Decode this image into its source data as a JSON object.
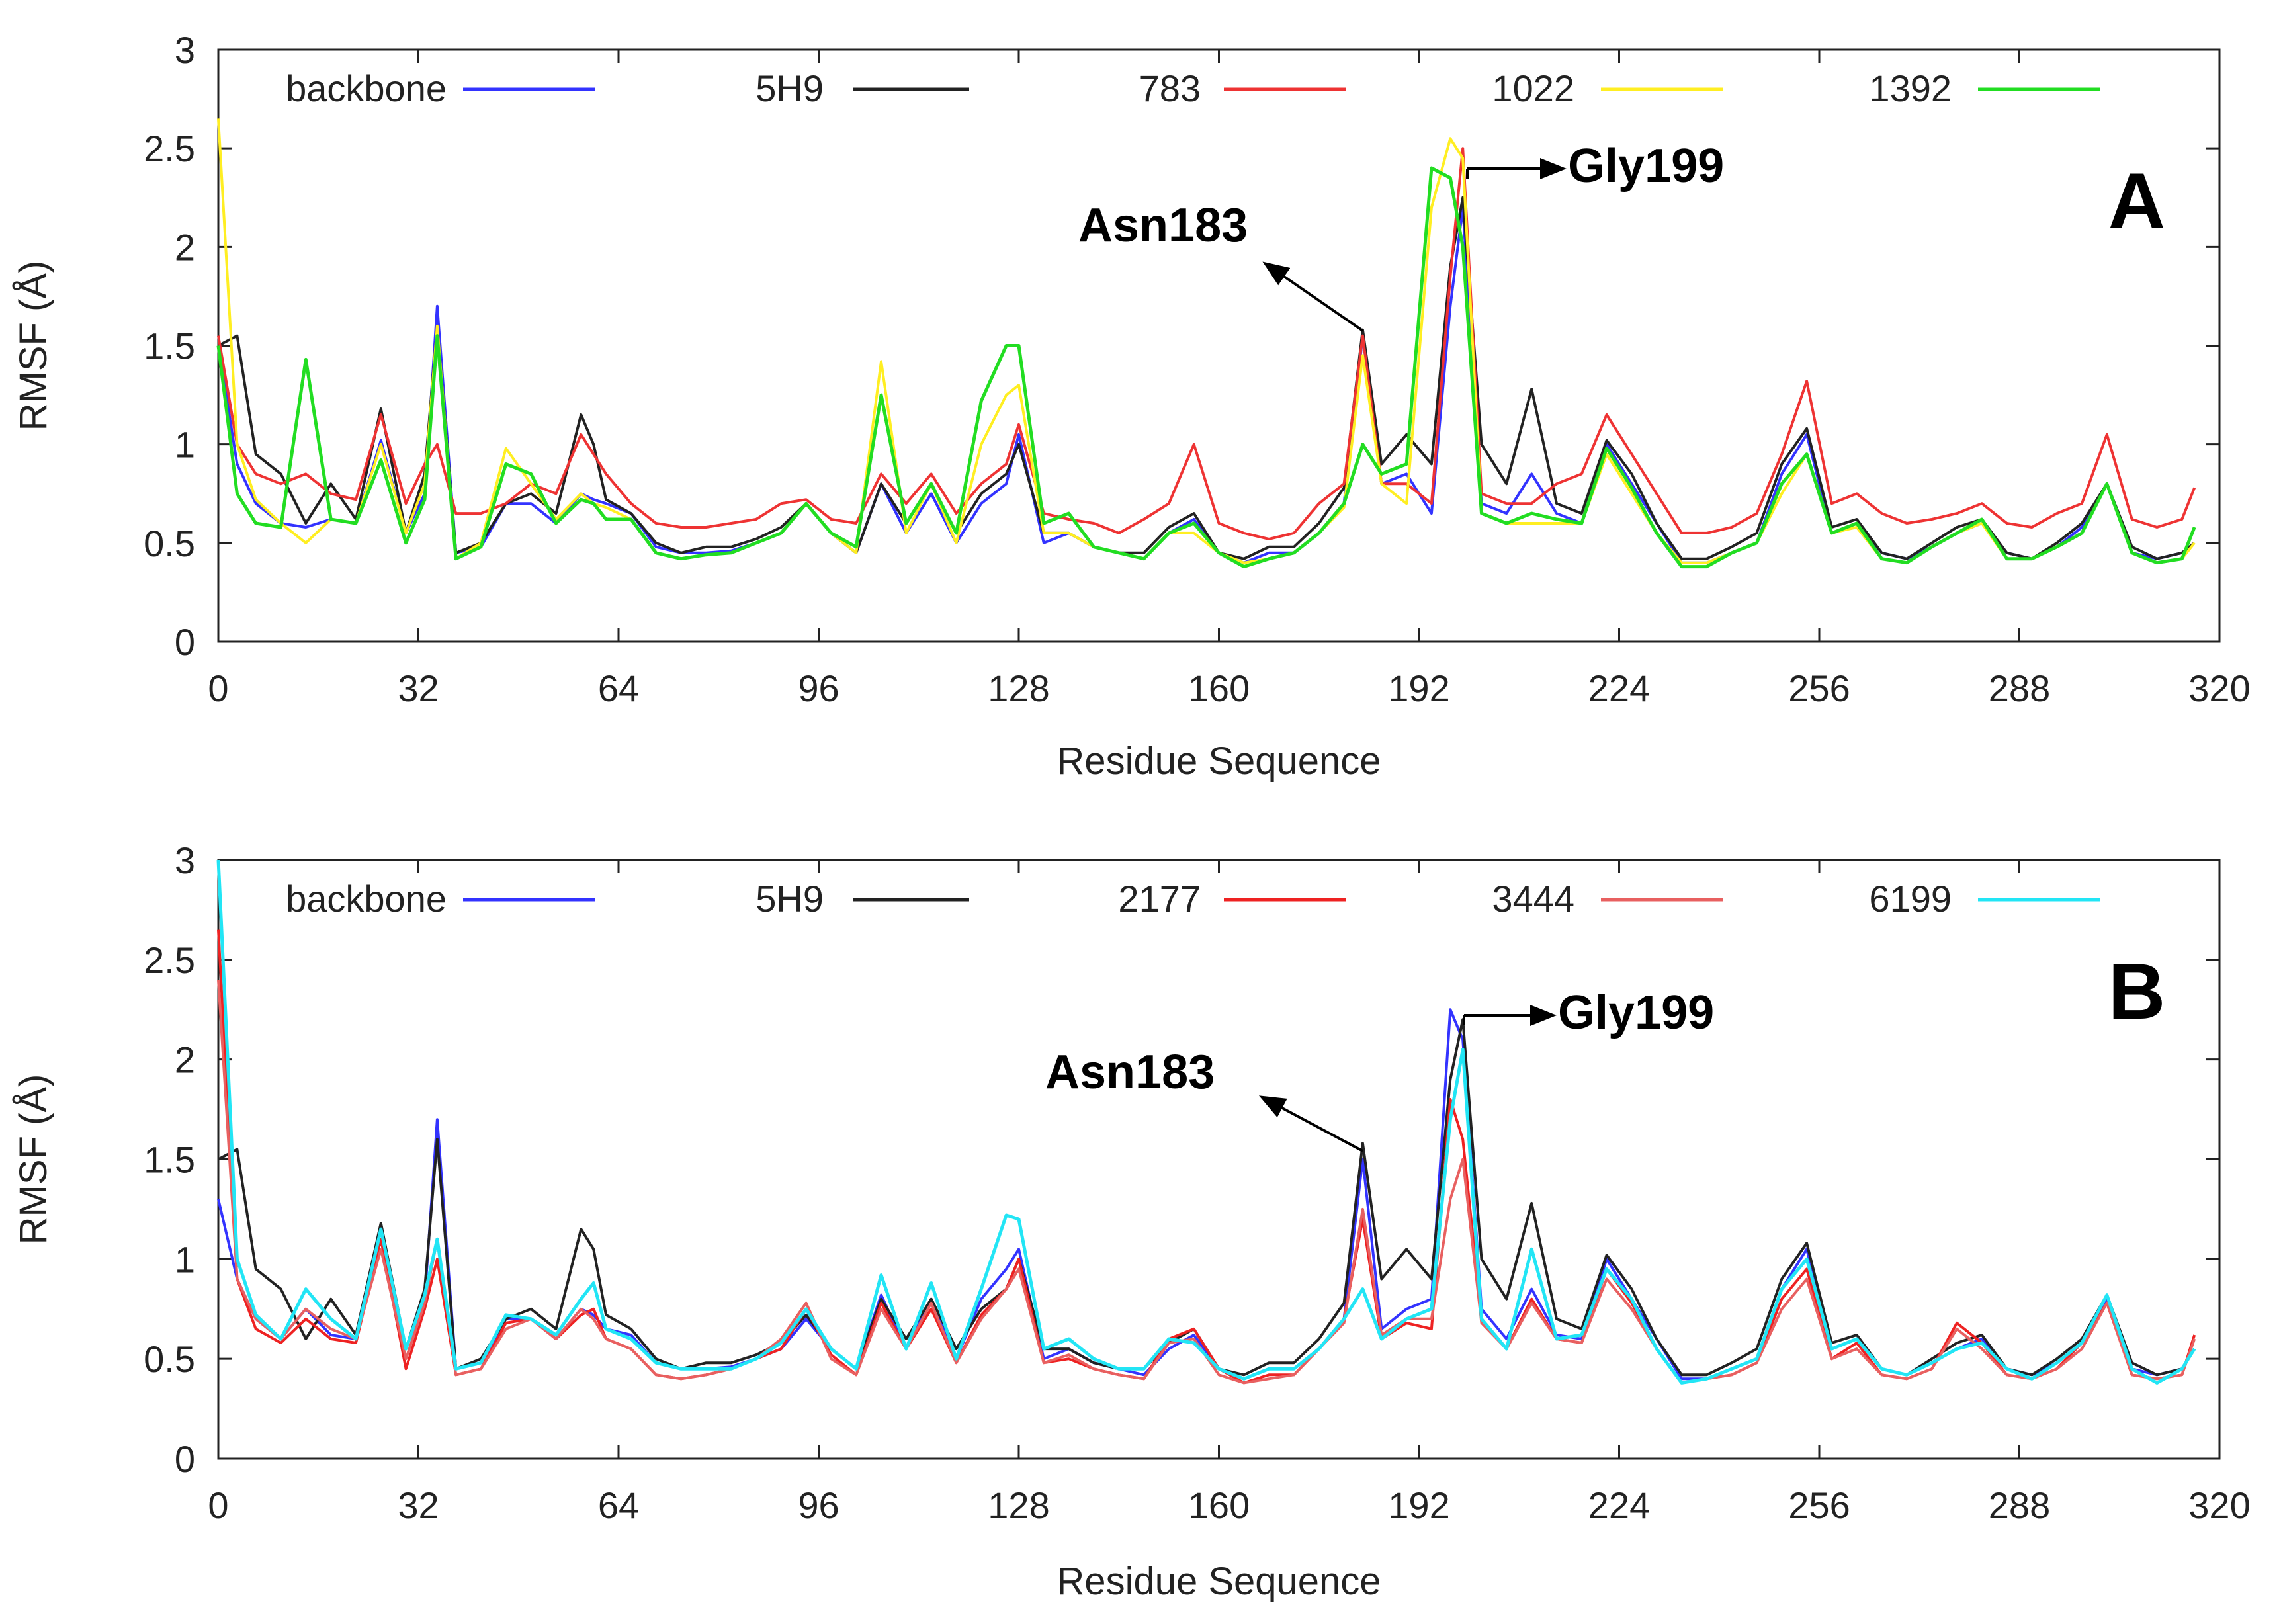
{
  "chart_data": [
    {
      "type": "line",
      "panel_label": "A",
      "xlabel": "Residue Sequence",
      "ylabel": "RMSF (Å)",
      "xlim": [
        0,
        320
      ],
      "ylim": [
        0,
        3
      ],
      "xticks": [
        "0",
        "32",
        "64",
        "96",
        "128",
        "160",
        "192",
        "224",
        "256",
        "288",
        "320"
      ],
      "yticks": [
        "0",
        "0.5",
        "1",
        "1.5",
        "2",
        "2.5",
        "3"
      ],
      "legend_position": "top",
      "annotations": [
        {
          "text": "Asn183",
          "residue": 183,
          "value": 1.58
        },
        {
          "text": "Gly199",
          "residue": 199,
          "value": 2.35
        }
      ],
      "x": [
        0,
        3,
        6,
        10,
        14,
        18,
        22,
        26,
        30,
        33,
        35,
        38,
        42,
        46,
        50,
        54,
        58,
        60,
        62,
        66,
        70,
        74,
        78,
        82,
        86,
        90,
        94,
        98,
        102,
        106,
        110,
        114,
        118,
        122,
        126,
        128,
        132,
        136,
        140,
        144,
        148,
        152,
        156,
        160,
        164,
        168,
        172,
        176,
        180,
        183,
        186,
        190,
        194,
        197,
        199,
        202,
        206,
        210,
        214,
        218,
        222,
        226,
        230,
        234,
        238,
        242,
        246,
        250,
        254,
        258,
        262,
        266,
        270,
        274,
        278,
        282,
        286,
        290,
        294,
        298,
        302,
        306,
        310,
        314,
        316
      ],
      "series": [
        {
          "name": "backbone",
          "color": "#3333ff",
          "values": [
            1.5,
            0.9,
            0.7,
            0.6,
            0.58,
            0.62,
            0.6,
            1.02,
            0.55,
            0.75,
            1.7,
            0.45,
            0.48,
            0.7,
            0.7,
            0.6,
            0.75,
            0.72,
            0.7,
            0.65,
            0.48,
            0.45,
            0.45,
            0.46,
            0.5,
            0.55,
            0.7,
            0.55,
            0.45,
            0.8,
            0.55,
            0.75,
            0.5,
            0.7,
            0.8,
            1.05,
            0.5,
            0.55,
            0.48,
            0.45,
            0.42,
            0.55,
            0.62,
            0.45,
            0.4,
            0.45,
            0.45,
            0.55,
            0.7,
            1.55,
            0.8,
            0.85,
            0.65,
            1.7,
            2.2,
            0.7,
            0.65,
            0.85,
            0.65,
            0.6,
            1.0,
            0.8,
            0.6,
            0.4,
            0.4,
            0.45,
            0.5,
            0.85,
            1.05,
            0.55,
            0.6,
            0.45,
            0.42,
            0.48,
            0.55,
            0.6,
            0.45,
            0.42,
            0.48,
            0.58,
            0.8,
            0.45,
            0.42,
            0.45,
            0.5
          ]
        },
        {
          "name": "5H9",
          "color": "#222222",
          "values": [
            1.5,
            1.55,
            0.95,
            0.85,
            0.6,
            0.8,
            0.62,
            1.18,
            0.55,
            0.85,
            1.6,
            0.45,
            0.5,
            0.7,
            0.75,
            0.65,
            1.15,
            1.0,
            0.72,
            0.65,
            0.5,
            0.45,
            0.48,
            0.48,
            0.52,
            0.58,
            0.7,
            0.55,
            0.45,
            0.8,
            0.6,
            0.8,
            0.55,
            0.75,
            0.85,
            1.0,
            0.55,
            0.55,
            0.48,
            0.45,
            0.45,
            0.58,
            0.65,
            0.45,
            0.42,
            0.48,
            0.48,
            0.6,
            0.78,
            1.58,
            0.9,
            1.05,
            0.9,
            1.9,
            2.25,
            1.0,
            0.8,
            1.28,
            0.7,
            0.65,
            1.02,
            0.85,
            0.6,
            0.42,
            0.42,
            0.48,
            0.55,
            0.9,
            1.08,
            0.58,
            0.62,
            0.45,
            0.42,
            0.5,
            0.58,
            0.62,
            0.45,
            0.42,
            0.5,
            0.6,
            0.8,
            0.48,
            0.42,
            0.45,
            0.5
          ]
        },
        {
          "name": "783",
          "color": "#ee3333",
          "values": [
            1.55,
            1.0,
            0.85,
            0.8,
            0.85,
            0.75,
            0.72,
            1.15,
            0.7,
            0.9,
            1.0,
            0.65,
            0.65,
            0.7,
            0.8,
            0.75,
            1.05,
            0.95,
            0.85,
            0.7,
            0.6,
            0.58,
            0.58,
            0.6,
            0.62,
            0.7,
            0.72,
            0.62,
            0.6,
            0.85,
            0.7,
            0.85,
            0.65,
            0.8,
            0.9,
            1.1,
            0.65,
            0.62,
            0.6,
            0.55,
            0.62,
            0.7,
            1.0,
            0.6,
            0.55,
            0.52,
            0.55,
            0.7,
            0.8,
            1.55,
            0.8,
            0.8,
            0.7,
            1.85,
            2.5,
            0.75,
            0.7,
            0.7,
            0.8,
            0.85,
            1.15,
            0.95,
            0.75,
            0.55,
            0.55,
            0.58,
            0.65,
            0.95,
            1.32,
            0.7,
            0.75,
            0.65,
            0.6,
            0.62,
            0.65,
            0.7,
            0.6,
            0.58,
            0.65,
            0.7,
            1.05,
            0.62,
            0.58,
            0.62,
            0.78
          ]
        },
        {
          "name": "1022",
          "color": "#ffee22",
          "values": [
            2.65,
            1.0,
            0.72,
            0.6,
            0.5,
            0.62,
            0.6,
            1.0,
            0.55,
            0.8,
            1.6,
            0.42,
            0.5,
            0.98,
            0.8,
            0.62,
            0.75,
            0.7,
            0.68,
            0.62,
            0.45,
            0.42,
            0.44,
            0.45,
            0.5,
            0.55,
            0.7,
            0.55,
            0.45,
            1.42,
            0.55,
            0.8,
            0.5,
            1.0,
            1.25,
            1.3,
            0.55,
            0.55,
            0.48,
            0.45,
            0.42,
            0.55,
            0.55,
            0.45,
            0.4,
            0.42,
            0.45,
            0.55,
            0.68,
            1.45,
            0.8,
            0.7,
            2.2,
            2.55,
            2.45,
            0.65,
            0.6,
            0.6,
            0.6,
            0.6,
            0.95,
            0.75,
            0.55,
            0.4,
            0.4,
            0.45,
            0.5,
            0.75,
            0.95,
            0.55,
            0.58,
            0.42,
            0.4,
            0.48,
            0.55,
            0.6,
            0.42,
            0.42,
            0.48,
            0.55,
            0.8,
            0.45,
            0.4,
            0.42,
            0.5
          ]
        },
        {
          "name": "1392",
          "color": "#22dd22",
          "values": [
            1.5,
            0.75,
            0.6,
            0.58,
            1.43,
            0.62,
            0.6,
            0.92,
            0.5,
            0.72,
            1.55,
            0.42,
            0.48,
            0.9,
            0.85,
            0.6,
            0.72,
            0.7,
            0.62,
            0.62,
            0.45,
            0.42,
            0.44,
            0.45,
            0.5,
            0.55,
            0.7,
            0.55,
            0.48,
            1.25,
            0.6,
            0.8,
            0.55,
            1.22,
            1.5,
            1.5,
            0.6,
            0.65,
            0.48,
            0.45,
            0.42,
            0.55,
            0.6,
            0.45,
            0.38,
            0.42,
            0.45,
            0.55,
            0.7,
            1.0,
            0.85,
            0.9,
            2.4,
            2.35,
            2.0,
            0.65,
            0.6,
            0.65,
            0.62,
            0.6,
            0.98,
            0.78,
            0.55,
            0.38,
            0.38,
            0.45,
            0.5,
            0.8,
            0.95,
            0.55,
            0.6,
            0.42,
            0.4,
            0.48,
            0.55,
            0.62,
            0.42,
            0.42,
            0.48,
            0.55,
            0.8,
            0.45,
            0.4,
            0.42,
            0.58
          ]
        }
      ]
    },
    {
      "type": "line",
      "panel_label": "B",
      "xlabel": "Residue Sequence",
      "ylabel": "RMSF (Å)",
      "xlim": [
        0,
        320
      ],
      "ylim": [
        0,
        3
      ],
      "xticks": [
        "0",
        "32",
        "64",
        "96",
        "128",
        "160",
        "192",
        "224",
        "256",
        "288",
        "320"
      ],
      "yticks": [
        "0",
        "0.5",
        "1",
        "1.5",
        "2",
        "2.5",
        "3"
      ],
      "legend_position": "top",
      "annotations": [
        {
          "text": "Asn183",
          "residue": 183,
          "value": 1.58
        },
        {
          "text": "Gly199",
          "residue": 199,
          "value": 2.25
        }
      ],
      "x": [
        0,
        3,
        6,
        10,
        14,
        18,
        22,
        26,
        30,
        33,
        35,
        38,
        42,
        46,
        50,
        54,
        58,
        60,
        62,
        66,
        70,
        74,
        78,
        82,
        86,
        90,
        94,
        98,
        102,
        106,
        110,
        114,
        118,
        122,
        126,
        128,
        132,
        136,
        140,
        144,
        148,
        152,
        156,
        160,
        164,
        168,
        172,
        176,
        180,
        183,
        186,
        190,
        194,
        197,
        199,
        202,
        206,
        210,
        214,
        218,
        222,
        226,
        230,
        234,
        238,
        242,
        246,
        250,
        254,
        258,
        262,
        266,
        270,
        274,
        278,
        282,
        286,
        290,
        294,
        298,
        302,
        306,
        310,
        314,
        316
      ],
      "series": [
        {
          "name": "backbone",
          "color": "#3333ff",
          "values": [
            1.3,
            0.9,
            0.7,
            0.6,
            0.75,
            0.62,
            0.6,
            1.1,
            0.55,
            0.8,
            1.7,
            0.45,
            0.48,
            0.7,
            0.7,
            0.6,
            0.75,
            0.72,
            0.65,
            0.62,
            0.48,
            0.45,
            0.45,
            0.46,
            0.5,
            0.55,
            0.7,
            0.55,
            0.45,
            0.82,
            0.55,
            0.8,
            0.5,
            0.8,
            0.95,
            1.05,
            0.5,
            0.55,
            0.48,
            0.45,
            0.42,
            0.55,
            0.62,
            0.45,
            0.4,
            0.45,
            0.45,
            0.55,
            0.7,
            1.5,
            0.65,
            0.75,
            0.8,
            2.25,
            2.1,
            0.75,
            0.6,
            0.85,
            0.62,
            0.6,
            1.0,
            0.8,
            0.6,
            0.4,
            0.4,
            0.45,
            0.5,
            0.85,
            1.05,
            0.55,
            0.6,
            0.45,
            0.42,
            0.48,
            0.55,
            0.6,
            0.45,
            0.42,
            0.48,
            0.58,
            0.8,
            0.45,
            0.42,
            0.45,
            0.55
          ]
        },
        {
          "name": "5H9",
          "color": "#222222",
          "values": [
            1.5,
            1.55,
            0.95,
            0.85,
            0.6,
            0.8,
            0.62,
            1.18,
            0.55,
            0.85,
            1.6,
            0.45,
            0.5,
            0.7,
            0.75,
            0.65,
            1.15,
            1.05,
            0.72,
            0.65,
            0.5,
            0.45,
            0.48,
            0.48,
            0.52,
            0.58,
            0.72,
            0.55,
            0.45,
            0.8,
            0.6,
            0.8,
            0.55,
            0.75,
            0.85,
            1.0,
            0.55,
            0.55,
            0.48,
            0.45,
            0.45,
            0.58,
            0.65,
            0.45,
            0.42,
            0.48,
            0.48,
            0.6,
            0.78,
            1.58,
            0.9,
            1.05,
            0.9,
            1.9,
            2.2,
            1.0,
            0.8,
            1.28,
            0.7,
            0.65,
            1.02,
            0.85,
            0.6,
            0.42,
            0.42,
            0.48,
            0.55,
            0.9,
            1.08,
            0.58,
            0.62,
            0.45,
            0.42,
            0.5,
            0.58,
            0.62,
            0.45,
            0.42,
            0.5,
            0.6,
            0.82,
            0.48,
            0.42,
            0.45,
            0.55
          ]
        },
        {
          "name": "2177",
          "color": "#ee2222",
          "values": [
            2.65,
            0.9,
            0.65,
            0.58,
            0.7,
            0.6,
            0.58,
            1.1,
            0.45,
            0.75,
            1.0,
            0.42,
            0.45,
            0.68,
            0.7,
            0.6,
            0.72,
            0.75,
            0.6,
            0.55,
            0.42,
            0.4,
            0.42,
            0.45,
            0.5,
            0.55,
            0.75,
            0.52,
            0.42,
            0.78,
            0.55,
            0.75,
            0.48,
            0.72,
            0.85,
            1.0,
            0.48,
            0.5,
            0.45,
            0.42,
            0.4,
            0.6,
            0.65,
            0.45,
            0.38,
            0.42,
            0.42,
            0.55,
            0.7,
            1.2,
            0.6,
            0.68,
            0.65,
            1.8,
            1.6,
            0.7,
            0.55,
            0.8,
            0.6,
            0.58,
            0.95,
            0.78,
            0.55,
            0.38,
            0.4,
            0.42,
            0.48,
            0.8,
            0.95,
            0.5,
            0.58,
            0.42,
            0.4,
            0.45,
            0.68,
            0.58,
            0.42,
            0.4,
            0.45,
            0.58,
            0.78,
            0.42,
            0.4,
            0.42,
            0.62
          ]
        },
        {
          "name": "3444",
          "color": "#e86060",
          "values": [
            2.4,
            0.9,
            0.7,
            0.6,
            0.75,
            0.65,
            0.6,
            1.05,
            0.5,
            0.78,
            1.1,
            0.42,
            0.45,
            0.65,
            0.7,
            0.6,
            0.75,
            0.7,
            0.6,
            0.55,
            0.42,
            0.4,
            0.42,
            0.45,
            0.5,
            0.6,
            0.78,
            0.5,
            0.42,
            0.75,
            0.55,
            0.78,
            0.48,
            0.7,
            0.85,
            0.95,
            0.48,
            0.52,
            0.45,
            0.42,
            0.4,
            0.58,
            0.6,
            0.42,
            0.38,
            0.4,
            0.42,
            0.55,
            0.68,
            1.25,
            0.62,
            0.7,
            0.7,
            1.3,
            1.5,
            0.68,
            0.55,
            0.78,
            0.6,
            0.58,
            0.9,
            0.75,
            0.55,
            0.38,
            0.4,
            0.42,
            0.48,
            0.75,
            0.9,
            0.5,
            0.55,
            0.42,
            0.4,
            0.45,
            0.65,
            0.55,
            0.42,
            0.4,
            0.45,
            0.55,
            0.78,
            0.42,
            0.4,
            0.42,
            0.6
          ]
        },
        {
          "name": "6199",
          "color": "#22e5f5",
          "values": [
            3.0,
            1.0,
            0.72,
            0.6,
            0.85,
            0.7,
            0.6,
            1.15,
            0.55,
            0.82,
            1.1,
            0.45,
            0.48,
            0.72,
            0.7,
            0.62,
            0.8,
            0.88,
            0.65,
            0.6,
            0.48,
            0.45,
            0.45,
            0.45,
            0.5,
            0.58,
            0.75,
            0.55,
            0.45,
            0.92,
            0.55,
            0.88,
            0.5,
            0.85,
            1.22,
            1.2,
            0.55,
            0.6,
            0.5,
            0.45,
            0.45,
            0.6,
            0.58,
            0.45,
            0.4,
            0.45,
            0.45,
            0.55,
            0.7,
            0.85,
            0.6,
            0.7,
            0.75,
            1.7,
            2.05,
            0.7,
            0.55,
            1.05,
            0.6,
            0.62,
            0.95,
            0.8,
            0.55,
            0.38,
            0.4,
            0.45,
            0.5,
            0.85,
            1.0,
            0.55,
            0.6,
            0.45,
            0.42,
            0.48,
            0.55,
            0.58,
            0.45,
            0.4,
            0.48,
            0.58,
            0.82,
            0.45,
            0.38,
            0.45,
            0.55
          ]
        }
      ]
    }
  ]
}
